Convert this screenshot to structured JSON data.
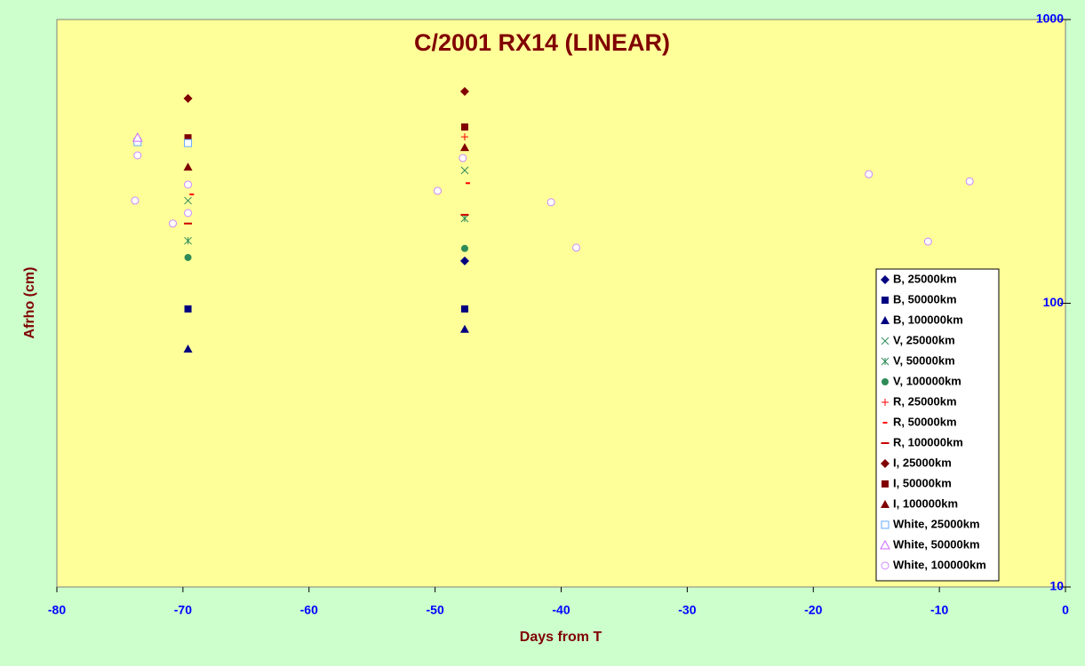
{
  "chart_data": {
    "type": "scatter",
    "title": "C/2001 RX14 (LINEAR)",
    "xlabel": "Days from T",
    "ylabel": "Afrho (cm)",
    "xlim": [
      -80,
      0
    ],
    "xticks": [
      -80,
      -70,
      -60,
      -50,
      -40,
      -30,
      -20,
      -10,
      0
    ],
    "ylim": [
      10,
      1000
    ],
    "yticks": [
      10,
      100,
      1000
    ],
    "yscale": "log",
    "y_axis_side": "right",
    "legend": "lower right",
    "series": [
      {
        "name": "B, 25000km",
        "color": "#000080",
        "marker": "diamond",
        "x": [
          -47.65
        ],
        "values": [
          141
        ]
      },
      {
        "name": "B, 50000km",
        "color": "#000080",
        "marker": "square",
        "x": [
          -69.6,
          -47.65
        ],
        "values": [
          95.5,
          95.5
        ]
      },
      {
        "name": "B, 100000km",
        "color": "#000080",
        "marker": "triangle",
        "x": [
          -69.6,
          -47.65
        ],
        "values": [
          69,
          81
        ]
      },
      {
        "name": "V, 25000km",
        "color": "#2e8b57",
        "marker": "x",
        "x": [
          -69.6,
          -47.65
        ],
        "values": [
          230,
          294
        ]
      },
      {
        "name": "V, 50000km",
        "color": "#2e8b57",
        "marker": "asterisk",
        "x": [
          -69.6,
          -47.65
        ],
        "values": [
          166,
          199
        ]
      },
      {
        "name": "V, 100000km",
        "color": "#2e8b57",
        "marker": "circle",
        "x": [
          -69.6,
          -47.65
        ],
        "values": [
          145,
          156
        ]
      },
      {
        "name": "R, 25000km",
        "color": "#ff0000",
        "marker": "plus",
        "x": [
          -47.65
        ],
        "values": [
          386
        ]
      },
      {
        "name": "R, 50000km",
        "color": "#ff0000",
        "marker": "short-dash",
        "x": [
          -69.3,
          -47.4
        ],
        "values": [
          242,
          265
        ]
      },
      {
        "name": "R, 100000km",
        "color": "#cc0000",
        "marker": "long-dash",
        "x": [
          -69.6,
          -47.65
        ],
        "values": [
          191,
          205
        ]
      },
      {
        "name": "I, 25000km",
        "color": "#800000",
        "marker": "diamond",
        "x": [
          -69.6,
          -47.65
        ],
        "values": [
          527,
          558
        ]
      },
      {
        "name": "I, 50000km",
        "color": "#800000",
        "marker": "square",
        "x": [
          -69.6,
          -47.65
        ],
        "values": [
          383,
          418
        ]
      },
      {
        "name": "I, 100000km",
        "color": "#800000",
        "marker": "triangle",
        "x": [
          -69.6,
          -47.65
        ],
        "values": [
          302,
          354
        ]
      },
      {
        "name": "White, 25000km",
        "color": "#66aaff",
        "marker": "open-square",
        "x": [
          -73.6,
          -69.6
        ],
        "values": [
          370,
          367
        ]
      },
      {
        "name": "White, 50000km",
        "color": "#cc66ff",
        "marker": "open-triangle",
        "x": [
          -73.6
        ],
        "values": [
          383
        ]
      },
      {
        "name": "White, 100000km",
        "color": "#cc88ff",
        "marker": "open-circle",
        "x": [
          -73.6,
          -73.8,
          -70.8,
          -69.6,
          -69.6,
          -49.8,
          -47.8,
          -40.8,
          -38.8,
          -15.6,
          -10.9,
          -7.6
        ],
        "values": [
          332,
          230,
          191,
          262,
          208,
          249,
          325,
          227,
          157,
          285,
          165,
          269
        ]
      }
    ]
  }
}
